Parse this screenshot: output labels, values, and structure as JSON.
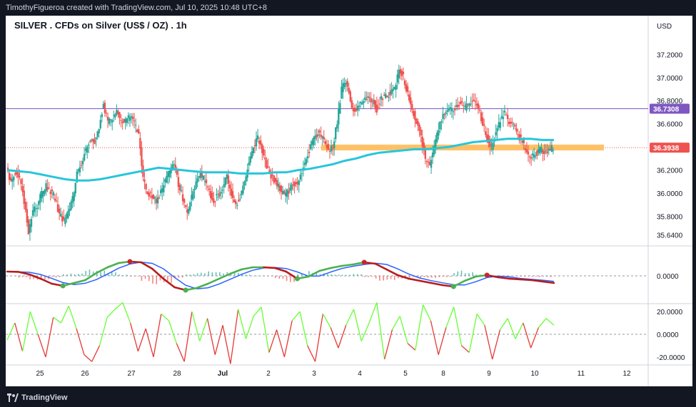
{
  "header": {
    "credit": "TimothyFigueroa created with TradingView.com, Jul 10, 2025 10:48 UTC+8"
  },
  "footer": {
    "brand": "TradingView",
    "logo_icon": "tradingview-logo-icon"
  },
  "colors": {
    "bg": "#131722",
    "panel": "#ffffff",
    "up": "#26a69a",
    "down": "#ef5350",
    "ma": "#26c6da",
    "resist": "#7e57c2",
    "support": "#ffb74d",
    "macd_up": "#4caf50",
    "macd_down": "#b71c1c",
    "macd_signal": "#2962ff",
    "osc_up": "#66ff33",
    "osc_down": "#e53935"
  },
  "chart_data": {
    "type": "candlestick",
    "title": "SILVER . CFDs on Silver (US$ / OZ) . 1h",
    "currency": "USD",
    "x_ticks": [
      "25",
      "26",
      "27",
      "28",
      "Jul",
      "2",
      "3",
      "4",
      "5",
      "8",
      "9",
      "10",
      "11",
      "12"
    ],
    "price_ticks": [
      "37.2000",
      "37.0000",
      "36.8000",
      "36.6000",
      "36.4000",
      "36.2000",
      "36.0000",
      "35.8000",
      "35.6400"
    ],
    "ylim": [
      35.55,
      37.35
    ],
    "resistance_level": 36.7308,
    "resistance_label": "36.7308",
    "last_price": 36.3938,
    "last_price_label": "36.3938",
    "support_zone": [
      36.37,
      36.42
    ],
    "price_path": [
      36.24,
      36.08,
      36.18,
      36.14,
      35.92,
      35.66,
      35.86,
      35.9,
      36.0,
      36.06,
      36.02,
      35.96,
      35.82,
      35.76,
      35.82,
      35.96,
      36.16,
      36.26,
      36.38,
      36.46,
      36.44,
      36.56,
      36.78,
      36.6,
      36.66,
      36.7,
      36.64,
      36.62,
      36.66,
      36.6,
      36.5,
      36.12,
      36.0,
      35.98,
      35.92,
      36.0,
      36.1,
      36.2,
      36.26,
      36.08,
      35.96,
      35.82,
      35.96,
      36.08,
      36.16,
      36.1,
      36.0,
      35.94,
      35.98,
      36.04,
      36.14,
      36.0,
      35.9,
      35.96,
      36.08,
      36.28,
      36.4,
      36.48,
      36.36,
      36.24,
      36.14,
      36.1,
      36.04,
      35.98,
      36.02,
      36.1,
      36.06,
      36.2,
      36.3,
      36.4,
      36.5,
      36.52,
      36.44,
      36.38,
      36.4,
      36.62,
      36.9,
      36.98,
      36.8,
      36.7,
      36.78,
      36.8,
      36.84,
      36.8,
      36.72,
      36.82,
      36.84,
      36.86,
      36.92,
      37.06,
      37.0,
      36.86,
      36.74,
      36.6,
      36.5,
      36.3,
      36.22,
      36.4,
      36.56,
      36.66,
      36.7,
      36.72,
      36.76,
      36.78,
      36.74,
      36.76,
      36.8,
      36.74,
      36.6,
      36.48,
      36.4,
      36.54,
      36.62,
      36.7,
      36.62,
      36.6,
      36.5,
      36.44,
      36.36,
      36.32,
      36.34,
      36.38,
      36.36,
      36.38,
      36.4
    ],
    "ma_path": [
      36.2,
      36.19,
      36.18,
      36.16,
      36.14,
      36.12,
      36.11,
      36.11,
      36.12,
      36.14,
      36.16,
      36.18,
      36.2,
      36.22,
      36.21,
      36.2,
      36.19,
      36.18,
      36.18,
      36.18,
      36.17,
      36.17,
      36.17,
      36.18,
      36.18,
      36.2,
      36.21,
      36.23,
      36.25,
      36.28,
      36.3,
      36.33,
      36.35,
      36.36,
      36.37,
      36.38,
      36.38,
      36.39,
      36.4,
      36.42,
      36.44,
      36.45,
      36.46,
      36.47,
      36.47,
      36.47,
      36.46,
      36.46
    ],
    "macd_ticks": [
      "0.0000"
    ],
    "macd_path": [
      0.3,
      0.28,
      0.1,
      -0.2,
      -0.55,
      -0.7,
      -0.5,
      -0.3,
      0.2,
      0.6,
      0.9,
      1.0,
      0.95,
      0.5,
      -0.2,
      -0.8,
      -1.0,
      -0.85,
      -0.55,
      -0.2,
      0.15,
      0.45,
      0.6,
      0.6,
      0.55,
      0.3,
      -0.2,
      -0.05,
      0.35,
      0.55,
      0.7,
      0.8,
      0.95,
      0.85,
      0.45,
      0.05,
      -0.2,
      -0.35,
      -0.5,
      -0.65,
      -0.75,
      -0.35,
      -0.05,
      0.05,
      -0.1,
      -0.2,
      -0.25,
      -0.3,
      -0.4,
      -0.5
    ],
    "osc_ticks": [
      "20.0000",
      "0.0000",
      "-20.0000"
    ],
    "osc_ylim": [
      -27,
      27
    ],
    "osc_path": [
      -5,
      10,
      -15,
      20,
      0,
      -20,
      15,
      10,
      25,
      5,
      -18,
      -24,
      -10,
      15,
      22,
      28,
      10,
      -15,
      5,
      -20,
      18,
      12,
      -8,
      -24,
      20,
      -6,
      14,
      -18,
      8,
      -26,
      22,
      -4,
      16,
      24,
      -16,
      4,
      -20,
      12,
      20,
      -10,
      -24,
      18,
      6,
      -12,
      8,
      22,
      -6,
      10,
      28,
      -22,
      4,
      16,
      -8,
      -14,
      26,
      12,
      -18,
      6,
      24,
      -10,
      -16,
      18,
      8,
      -22,
      4,
      14,
      -4,
      10,
      -12,
      6,
      14,
      8
    ]
  }
}
